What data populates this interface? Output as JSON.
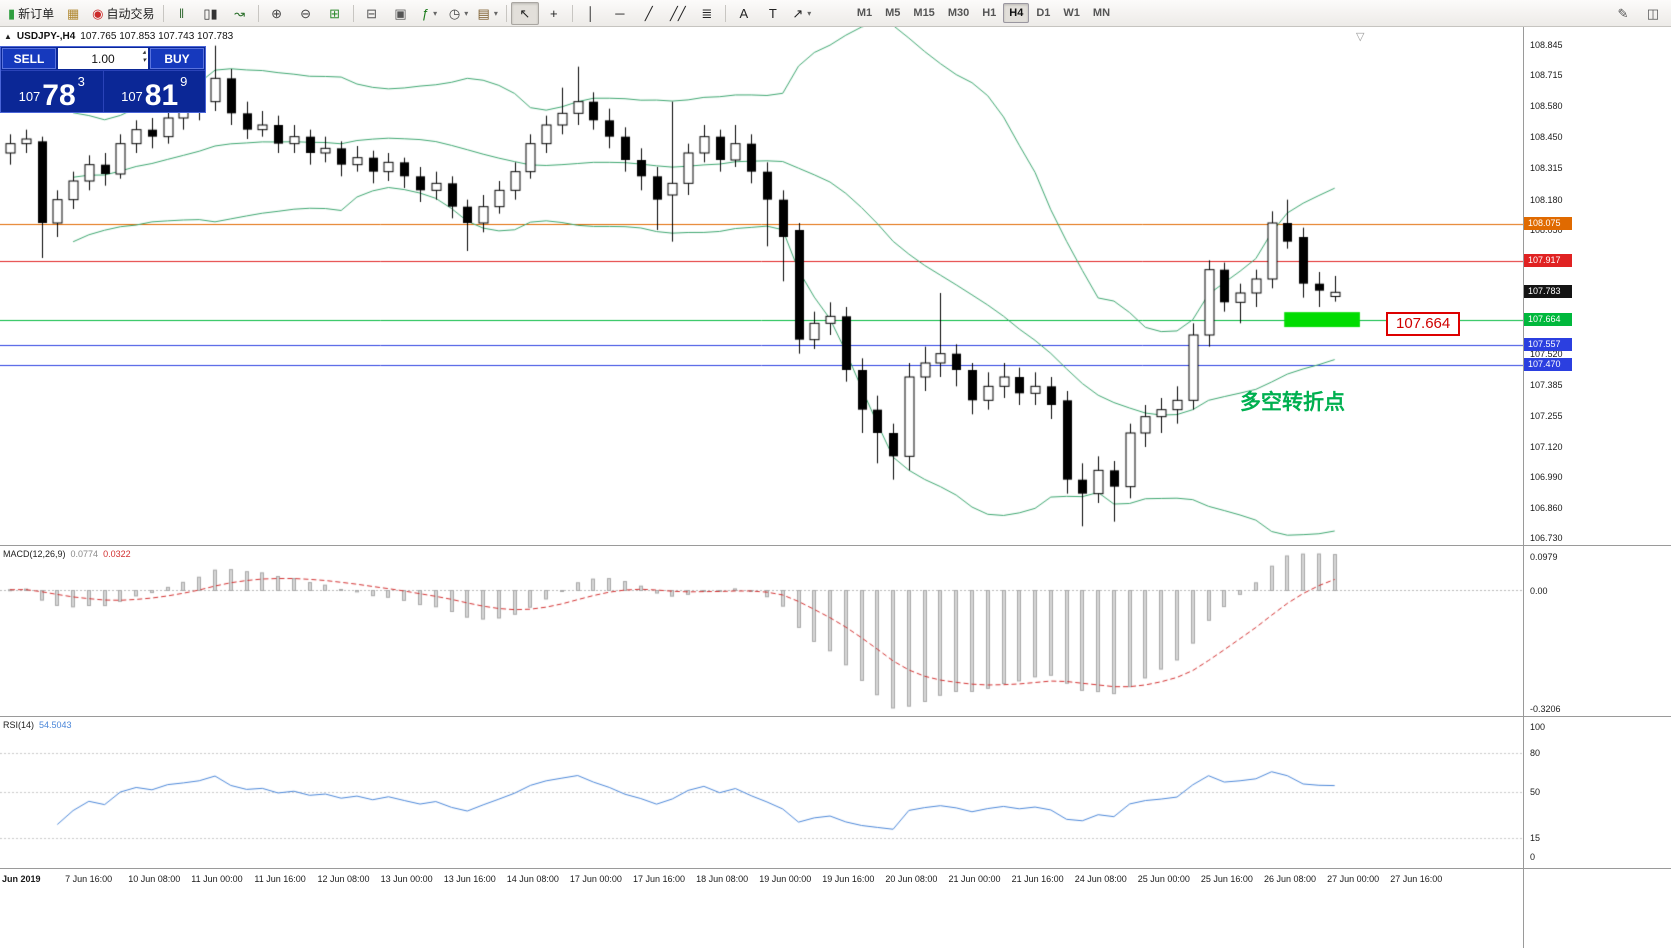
{
  "icons": {
    "spinner_up": "▴",
    "spinner_down": "▾",
    "collapse": "▲",
    "shift_marker": "▽",
    "caret": "▾"
  },
  "toolbar": {
    "items": [
      {
        "name": "new-order-button",
        "icon": "new-order-icon",
        "glyph": "▮",
        "color": "#2f9e3f",
        "label": "新订单"
      },
      {
        "name": "chart-window-button",
        "icon": "chart-window-icon",
        "glyph": "▦",
        "color": "#b08830"
      },
      {
        "name": "auto-trading-button",
        "icon": "auto-trading-icon",
        "glyph": "◉",
        "color": "#cc2a2a",
        "label": "自动交易"
      },
      {
        "sep": true
      },
      {
        "name": "bar-chart-button",
        "icon": "bar-chart-icon",
        "glyph": "‖",
        "color": "#3a6f3a"
      },
      {
        "name": "candle-chart-button",
        "icon": "candlestick-icon",
        "glyph": "▯▮",
        "color": "#333333"
      },
      {
        "name": "line-chart-button",
        "icon": "line-chart-icon",
        "glyph": "↝",
        "color": "#2a6f2a"
      },
      {
        "sep": true
      },
      {
        "name": "zoom-in-button",
        "icon": "zoom-in-icon",
        "glyph": "⊕",
        "color": "#444444"
      },
      {
        "name": "zoom-out-button",
        "icon": "zoom-out-icon",
        "glyph": "⊖",
        "color": "#444444"
      },
      {
        "name": "tile-windows-button",
        "icon": "grid-icon",
        "glyph": "⊞",
        "color": "#2e8b2e"
      },
      {
        "sep": true
      },
      {
        "name": "arrange-windows-button",
        "icon": "arrange-icon",
        "glyph": "⊟",
        "color": "#555555"
      },
      {
        "name": "cascade-windows-button",
        "icon": "cascade-icon",
        "glyph": "▣",
        "color": "#555555"
      },
      {
        "name": "indicators-button",
        "icon": "indicators-icon",
        "glyph": "ƒ",
        "color": "#1a7a1a",
        "caret": true
      },
      {
        "name": "periods-button",
        "icon": "clock-icon",
        "glyph": "◷",
        "color": "#444444",
        "caret": true
      },
      {
        "name": "templates-button",
        "icon": "template-icon",
        "glyph": "▤",
        "color": "#7a5a2a",
        "caret": true
      },
      {
        "sep": true
      },
      {
        "name": "cursor-button",
        "icon": "cursor-icon",
        "glyph": "↖",
        "color": "#222222",
        "active": true
      },
      {
        "name": "crosshair-button",
        "icon": "crosshair-icon",
        "glyph": "+",
        "color": "#222222"
      },
      {
        "sep": true
      },
      {
        "name": "vertical-line-button",
        "icon": "vertical-line-icon",
        "glyph": "│",
        "color": "#222222"
      },
      {
        "name": "horizontal-line-button",
        "icon": "horizontal-line-icon",
        "glyph": "─",
        "color": "#222222"
      },
      {
        "name": "trendline-button",
        "icon": "trendline-icon",
        "glyph": "╱",
        "color": "#222222"
      },
      {
        "name": "channel-button",
        "icon": "channel-icon",
        "glyph": "╱╱",
        "color": "#222222"
      },
      {
        "name": "fibonacci-button",
        "icon": "fibonacci-icon",
        "glyph": "≣",
        "color": "#222222"
      },
      {
        "sep": true
      },
      {
        "name": "text-button",
        "icon": "text-icon",
        "glyph": "A",
        "color": "#222222"
      },
      {
        "name": "text-label-button",
        "icon": "text-label-icon",
        "glyph": "T",
        "color": "#222222"
      },
      {
        "name": "shapes-button",
        "icon": "shapes-icon",
        "glyph": "↗",
        "color": "#222222",
        "caret": true
      }
    ],
    "timeframes": [
      "M1",
      "M5",
      "M15",
      "M30",
      "H1",
      "H4",
      "D1",
      "W1",
      "MN"
    ],
    "active_timeframe": "H4",
    "right_items": [
      {
        "name": "edit-chart-button",
        "icon": "pencil-icon",
        "glyph": "✎",
        "color": "#555555"
      },
      {
        "name": "chart-profile-button",
        "icon": "layers-icon",
        "glyph": "◫",
        "color": "#555555"
      }
    ]
  },
  "symbol_bar": {
    "symbol": "USDJPY-,H4",
    "ohlc": "107.765 107.853 107.743 107.783"
  },
  "trade_panel": {
    "sell_label": "SELL",
    "buy_label": "BUY",
    "volume": "1.00",
    "sell_int": "107",
    "sell_pips": "78",
    "sell_sup": "3",
    "buy_int": "107",
    "buy_pips": "81",
    "buy_sup": "9"
  },
  "annotations": {
    "turning_point_text": "多空转折点",
    "turning_point_color": "#00B050",
    "price_callout": "107.664"
  },
  "macd": {
    "name": "MACD(12,26,9)",
    "value_main": "0.0774",
    "value_signal": "0.0322",
    "scale_top": "0.0979",
    "scale_zero": "0.00",
    "scale_bottom": "-0.3206"
  },
  "rsi": {
    "name": "RSI(14)",
    "value": "54.5043",
    "scale": [
      "100",
      "80",
      "50",
      "15",
      "0"
    ]
  },
  "chart_data": {
    "type": "candlestick",
    "symbol": "USDJPY-",
    "timeframe": "H4",
    "ohlc_current": {
      "open": 107.765,
      "high": 107.853,
      "low": 107.743,
      "close": 107.783
    },
    "price_range": [
      106.7,
      108.92
    ],
    "candles": [
      [
        108.38,
        108.46,
        108.33,
        108.42
      ],
      [
        108.42,
        108.48,
        108.38,
        108.44
      ],
      [
        108.43,
        108.45,
        107.93,
        108.08
      ],
      [
        108.08,
        108.22,
        108.02,
        108.18
      ],
      [
        108.18,
        108.3,
        108.14,
        108.26
      ],
      [
        108.26,
        108.37,
        108.22,
        108.33
      ],
      [
        108.33,
        108.38,
        108.24,
        108.29
      ],
      [
        108.29,
        108.46,
        108.27,
        108.42
      ],
      [
        108.42,
        108.52,
        108.38,
        108.48
      ],
      [
        108.48,
        108.53,
        108.4,
        108.45
      ],
      [
        108.45,
        108.57,
        108.42,
        108.53
      ],
      [
        108.53,
        108.62,
        108.48,
        108.56
      ],
      [
        108.56,
        108.72,
        108.52,
        108.6
      ],
      [
        108.6,
        108.84,
        108.56,
        108.7
      ],
      [
        108.7,
        108.74,
        108.5,
        108.55
      ],
      [
        108.55,
        108.6,
        108.44,
        108.48
      ],
      [
        108.48,
        108.56,
        108.45,
        108.5
      ],
      [
        108.5,
        108.54,
        108.38,
        108.42
      ],
      [
        108.42,
        108.5,
        108.38,
        108.45
      ],
      [
        108.45,
        108.48,
        108.33,
        108.38
      ],
      [
        108.38,
        108.45,
        108.34,
        108.4
      ],
      [
        108.4,
        108.43,
        108.28,
        108.33
      ],
      [
        108.33,
        108.41,
        108.3,
        108.36
      ],
      [
        108.36,
        108.39,
        108.25,
        108.3
      ],
      [
        108.3,
        108.38,
        108.26,
        108.34
      ],
      [
        108.34,
        108.36,
        108.23,
        108.28
      ],
      [
        108.28,
        108.32,
        108.17,
        108.22
      ],
      [
        108.22,
        108.3,
        108.18,
        108.25
      ],
      [
        108.25,
        108.28,
        108.1,
        108.15
      ],
      [
        108.15,
        108.18,
        107.96,
        108.08
      ],
      [
        108.08,
        108.2,
        108.04,
        108.15
      ],
      [
        108.15,
        108.26,
        108.12,
        108.22
      ],
      [
        108.22,
        108.34,
        108.18,
        108.3
      ],
      [
        108.3,
        108.46,
        108.27,
        108.42
      ],
      [
        108.42,
        108.54,
        108.38,
        108.5
      ],
      [
        108.5,
        108.66,
        108.46,
        108.55
      ],
      [
        108.55,
        108.75,
        108.5,
        108.6
      ],
      [
        108.6,
        108.64,
        108.48,
        108.52
      ],
      [
        108.52,
        108.57,
        108.4,
        108.45
      ],
      [
        108.45,
        108.49,
        108.3,
        108.35
      ],
      [
        108.35,
        108.4,
        108.22,
        108.28
      ],
      [
        108.28,
        108.32,
        108.05,
        108.18
      ],
      [
        108.2,
        108.6,
        108.0,
        108.25
      ],
      [
        108.25,
        108.42,
        108.2,
        108.38
      ],
      [
        108.38,
        108.5,
        108.34,
        108.45
      ],
      [
        108.45,
        108.48,
        108.3,
        108.35
      ],
      [
        108.35,
        108.5,
        108.32,
        108.42
      ],
      [
        108.42,
        108.46,
        108.25,
        108.3
      ],
      [
        108.3,
        108.34,
        107.98,
        108.18
      ],
      [
        108.18,
        108.22,
        107.83,
        108.02
      ],
      [
        108.05,
        108.08,
        107.52,
        107.58
      ],
      [
        107.58,
        107.7,
        107.54,
        107.65
      ],
      [
        107.65,
        107.74,
        107.6,
        107.68
      ],
      [
        107.68,
        107.72,
        107.4,
        107.45
      ],
      [
        107.45,
        107.5,
        107.18,
        107.28
      ],
      [
        107.28,
        107.34,
        107.05,
        107.18
      ],
      [
        107.18,
        107.22,
        106.98,
        107.08
      ],
      [
        107.08,
        107.48,
        107.02,
        107.42
      ],
      [
        107.42,
        107.55,
        107.36,
        107.48
      ],
      [
        107.48,
        107.78,
        107.42,
        107.52
      ],
      [
        107.52,
        107.56,
        107.38,
        107.45
      ],
      [
        107.45,
        107.48,
        107.26,
        107.32
      ],
      [
        107.32,
        107.44,
        107.28,
        107.38
      ],
      [
        107.38,
        107.48,
        107.33,
        107.42
      ],
      [
        107.42,
        107.46,
        107.3,
        107.35
      ],
      [
        107.35,
        107.44,
        107.3,
        107.38
      ],
      [
        107.38,
        107.42,
        107.24,
        107.3
      ],
      [
        107.32,
        107.36,
        106.92,
        106.98
      ],
      [
        106.98,
        107.05,
        106.78,
        106.92
      ],
      [
        106.92,
        107.08,
        106.88,
        107.02
      ],
      [
        107.02,
        107.06,
        106.8,
        106.95
      ],
      [
        106.95,
        107.22,
        106.9,
        107.18
      ],
      [
        107.18,
        107.3,
        107.12,
        107.25
      ],
      [
        107.25,
        107.33,
        107.18,
        107.28
      ],
      [
        107.28,
        107.38,
        107.22,
        107.32
      ],
      [
        107.32,
        107.65,
        107.28,
        107.6
      ],
      [
        107.6,
        107.92,
        107.55,
        107.88
      ],
      [
        107.88,
        107.91,
        107.7,
        107.74
      ],
      [
        107.74,
        107.82,
        107.65,
        107.78
      ],
      [
        107.78,
        107.88,
        107.72,
        107.84
      ],
      [
        107.84,
        108.13,
        107.8,
        108.08
      ],
      [
        108.08,
        108.18,
        107.97,
        108.0
      ],
      [
        108.02,
        108.06,
        107.76,
        107.82
      ],
      [
        107.82,
        107.87,
        107.72,
        107.79
      ],
      [
        107.765,
        107.853,
        107.743,
        107.783
      ]
    ],
    "indicators": {
      "bollinger": {
        "period": 20,
        "deviation": 2,
        "color": "#3BA56E"
      },
      "macd": {
        "fast": 12,
        "slow": 26,
        "signal": 9,
        "value": 0.0774,
        "signal_value": 0.0322,
        "histogram_color": "#d6d6d6",
        "histogram_border": "#a8a8a8",
        "signal_color": "#d23030"
      },
      "rsi": {
        "period": 14,
        "value": 54.5043,
        "color": "#4a86d8",
        "levels": [
          80,
          50,
          15
        ]
      }
    },
    "hlines": [
      {
        "price": 108.075,
        "color": "#E06A00",
        "label": "108.075"
      },
      {
        "price": 107.917,
        "color": "#E02222",
        "label": "107.917"
      },
      {
        "price": 107.664,
        "color": "#00B83C",
        "label": "107.664"
      },
      {
        "price": 107.557,
        "color": "#2B3FE0",
        "label": "107.557"
      },
      {
        "price": 107.47,
        "color": "#2B3FE0",
        "label": "107.470"
      }
    ],
    "current_price_tag": {
      "price": 107.783,
      "label": "107.783",
      "bg": "#141414"
    },
    "scale_labels": [
      "108.845",
      "108.715",
      "108.580",
      "108.450",
      "108.315",
      "108.180",
      "108.050",
      "107.915",
      "107.785",
      "107.650",
      "107.520",
      "107.385",
      "107.255",
      "107.120",
      "106.990",
      "106.860",
      "106.730"
    ],
    "time_labels": [
      "Jun 2019",
      "7 Jun 16:00",
      "10 Jun 08:00",
      "11 Jun 00:00",
      "11 Jun 16:00",
      "12 Jun 08:00",
      "13 Jun 00:00",
      "13 Jun 16:00",
      "14 Jun 08:00",
      "17 Jun 00:00",
      "17 Jun 16:00",
      "18 Jun 08:00",
      "19 Jun 00:00",
      "19 Jun 16:00",
      "20 Jun 08:00",
      "21 Jun 00:00",
      "21 Jun 16:00",
      "24 Jun 08:00",
      "25 Jun 00:00",
      "25 Jun 16:00",
      "26 Jun 08:00",
      "27 Jun 00:00",
      "27 Jun 16:00"
    ],
    "highlight_rect": {
      "from_bar": 80.8,
      "to_bar": 85.6,
      "price_top": 107.698,
      "price_bottom": 107.634,
      "color": "#00DC00"
    }
  }
}
